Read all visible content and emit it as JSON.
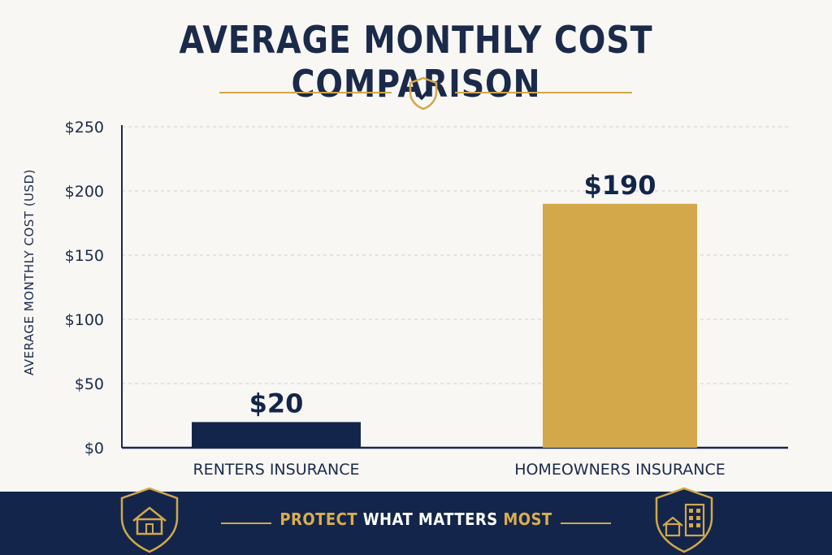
{
  "title": "AVERAGE MONTHLY COST COMPARISON",
  "footer": {
    "tagline_parts": [
      {
        "text": "PROTECT",
        "color": "gold"
      },
      {
        "text": " WHAT MATTERS ",
        "color": "white"
      },
      {
        "text": "MOST",
        "color": "gold"
      }
    ],
    "left_icon": "house-shield-icon",
    "right_icon": "building-shield-icon"
  },
  "badge_icon": "shield-check-icon",
  "colors": {
    "navy": "#13254a",
    "gold": "#d3a84a",
    "background": "#f8f7f4"
  },
  "chart_data": {
    "type": "bar",
    "categories": [
      "RENTERS INSURANCE",
      "HOMEOWNERS INSURANCE"
    ],
    "values": [
      20,
      190
    ],
    "value_labels": [
      "$20",
      "$190"
    ],
    "bar_colors": [
      "#13254a",
      "#d3a84a"
    ],
    "ylabel": "AVERAGE MONTHLY COST (USD)",
    "ylim": [
      0,
      250
    ],
    "yticks": [
      0,
      50,
      100,
      150,
      200,
      250
    ],
    "ytick_labels": [
      "$0",
      "$50",
      "$100",
      "$150",
      "$200",
      "$250"
    ],
    "grid": true,
    "legend": "none"
  }
}
